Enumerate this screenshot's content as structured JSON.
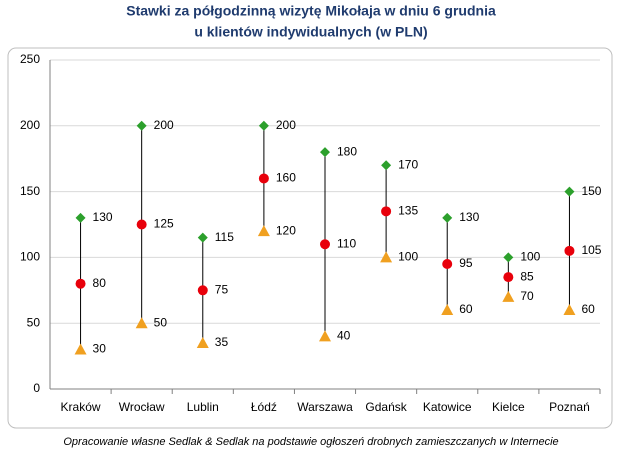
{
  "chart_data": {
    "type": "range-dot",
    "title": [
      "Stawki za półgodzinną wizytę Mikołaja w dniu 6 grudnia",
      "u klientów indywidualnych (w PLN)"
    ],
    "source": "Opracowanie własne Sedlak & Sedlak na podstawie ogłoszeń drobnych zamieszczanych  w Internecie",
    "categories": [
      "Kraków",
      "Wrocław",
      "Lublin",
      "Łódź",
      "Warszawa",
      "Gdańsk",
      "Katowice",
      "Kielce",
      "Poznań"
    ],
    "series": [
      {
        "color": "#2ca02c",
        "marker": "diamond",
        "values": [
          130,
          200,
          115,
          200,
          180,
          170,
          130,
          100,
          150
        ]
      },
      {
        "color": "#e8000b",
        "marker": "circle",
        "values": [
          80,
          125,
          75,
          160,
          110,
          135,
          95,
          85,
          105
        ]
      },
      {
        "color": "#f0a020",
        "marker": "triangle",
        "values": [
          30,
          50,
          35,
          120,
          40,
          100,
          60,
          70,
          60
        ]
      }
    ],
    "range_line_color": "#000000",
    "ylim": [
      0,
      250
    ],
    "yticks": [
      0,
      50,
      100,
      150,
      200,
      250
    ],
    "grid": true
  }
}
